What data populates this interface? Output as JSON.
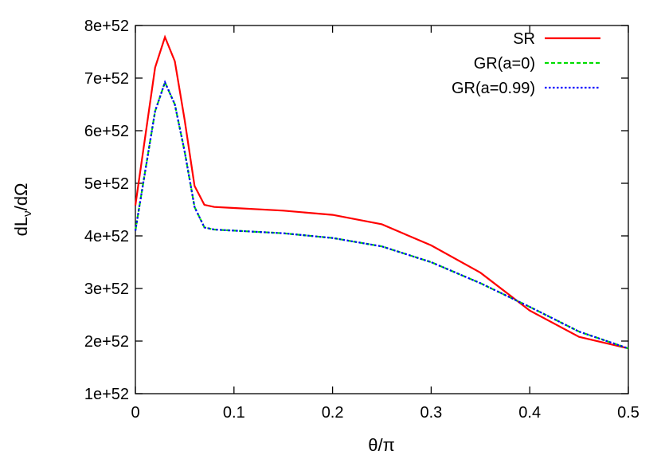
{
  "chart_data": {
    "type": "line",
    "title": "",
    "xlabel": "θ/π",
    "ylabel_main": "dL",
    "ylabel_sub": "ν",
    "ylabel_tail": "/dΩ",
    "xlim": [
      0,
      0.5
    ],
    "ylim": [
      1e+52,
      8e+52
    ],
    "xticks": [
      "0",
      "0.1",
      "0.2",
      "0.3",
      "0.4",
      "0.5"
    ],
    "yticks": [
      "1e+52",
      "2e+52",
      "3e+52",
      "4e+52",
      "5e+52",
      "6e+52",
      "7e+52",
      "8e+52"
    ],
    "grid": false,
    "legend_position": "top-right",
    "series": [
      {
        "name": "SR",
        "color": "#ff0000",
        "dash": "solid",
        "x": [
          0,
          0.02,
          0.03,
          0.04,
          0.05,
          0.06,
          0.07,
          0.08,
          0.1,
          0.15,
          0.2,
          0.25,
          0.3,
          0.35,
          0.4,
          0.45,
          0.5
        ],
        "y": [
          4.58e+52,
          7.2e+52,
          7.78e+52,
          7.32e+52,
          6.2e+52,
          4.95e+52,
          4.59e+52,
          4.55e+52,
          4.53e+52,
          4.48e+52,
          4.4e+52,
          4.22e+52,
          3.82e+52,
          3.3e+52,
          2.58e+52,
          2.08e+52,
          1.86e+52
        ]
      },
      {
        "name": "GR(a=0)",
        "color": "#00dd00",
        "dash": "dashed",
        "x": [
          0,
          0.02,
          0.03,
          0.04,
          0.05,
          0.06,
          0.07,
          0.08,
          0.1,
          0.15,
          0.2,
          0.25,
          0.3,
          0.35,
          0.4,
          0.45,
          0.5
        ],
        "y": [
          4.1e+52,
          6.37e+52,
          6.92e+52,
          6.5e+52,
          5.6e+52,
          4.55e+52,
          4.16e+52,
          4.12e+52,
          4.1e+52,
          4.05e+52,
          3.96e+52,
          3.8e+52,
          3.5e+52,
          3.1e+52,
          2.65e+52,
          2.18e+52,
          1.86e+52
        ]
      },
      {
        "name": "GR(a=0.99)",
        "color": "#0000ff",
        "dash": "dotted",
        "x": [
          0,
          0.02,
          0.03,
          0.04,
          0.05,
          0.06,
          0.07,
          0.08,
          0.1,
          0.15,
          0.2,
          0.25,
          0.3,
          0.35,
          0.4,
          0.45,
          0.5
        ],
        "y": [
          4.1e+52,
          6.37e+52,
          6.92e+52,
          6.5e+52,
          5.6e+52,
          4.55e+52,
          4.16e+52,
          4.12e+52,
          4.1e+52,
          4.05e+52,
          3.96e+52,
          3.8e+52,
          3.5e+52,
          3.1e+52,
          2.65e+52,
          2.18e+52,
          1.86e+52
        ]
      }
    ]
  }
}
